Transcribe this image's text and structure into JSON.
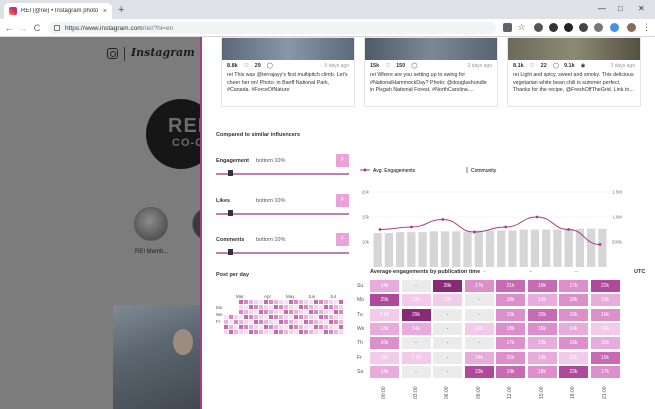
{
  "browser": {
    "tab_title": "REI (@rei) • Instagram photo",
    "tab_close": "×",
    "new_tab": "+",
    "url_host": "https://www.instagram.com",
    "url_path": "/rei/?hl=en",
    "window_controls": [
      "—",
      "□",
      "✕"
    ],
    "back": "←",
    "forward": "→",
    "reload": "C"
  },
  "instagram": {
    "wordmark": "Instagram",
    "logo_line1": "REI",
    "logo_line2": "CO-OP",
    "highlight_label": "REI Memb..."
  },
  "posts": [
    {
      "likes": "8.8k",
      "comments": "29",
      "date": "5 days ago",
      "caption": "rei This was @terrajayy's first multipitch climb. Let's cheer her on! Photo: in Banff National Park, #Canada. #ForceOfNature"
    },
    {
      "likes": "15k",
      "comments": "150",
      "date": "3 days ago",
      "caption": "rei Where are you setting up to swing for #NationalHammockDay? Photo: @douglashundle in Pisgah National Forest, #NorthCarolina...."
    },
    {
      "likes": "8.1k",
      "comments": "22",
      "views": "9.1k",
      "date": "3 days ago",
      "caption": "rei Light and spicy, sweet and smoky. This delicious vegetarian white bean chili is summer perfect. Thanks for the recipe, @FreshOffTheGrid. Link to..."
    }
  ],
  "comparison": {
    "title": "Compared to similar influencers",
    "metrics": [
      {
        "label": "Engagement",
        "value": "bottom 10%",
        "chip": "F"
      },
      {
        "label": "Likes",
        "value": "bottom 10%",
        "chip": "F"
      },
      {
        "label": "Comments",
        "value": "bottom 10%",
        "chip": "F"
      }
    ]
  },
  "posts_per_day": {
    "title": "Post per day",
    "months": [
      "Mar",
      "Apr",
      "May",
      "Jun",
      "Jul"
    ],
    "days": [
      "Mo",
      "We",
      "Fr"
    ]
  },
  "chart_data": [
    {
      "type": "line",
      "legend": [
        "Avg. Engagements",
        "Community"
      ],
      "y_left_ticks": [
        "20k",
        "15k",
        "10k"
      ],
      "y_right_ticks": [
        "1.5M",
        "1.0M",
        "500k"
      ],
      "x_ticks": [
        "Mar",
        "Apr",
        "May",
        "Jun",
        "Jul"
      ],
      "series": [
        {
          "name": "Avg. Engagements",
          "values": [
            12500,
            13000,
            14500,
            12000,
            13000,
            15000,
            12500,
            9500
          ]
        },
        {
          "name": "Community",
          "values": [
            1000000,
            1000000,
            1010000,
            1010000,
            1010000,
            1020000,
            1020000,
            1020000,
            1020000,
            1030000,
            1030000,
            1030000,
            1030000,
            1040000,
            1040000,
            1040000,
            1040000,
            1050000,
            1050000,
            1050000,
            1050000
          ]
        }
      ]
    },
    {
      "type": "heatmap",
      "title": "Average engagements by publication time",
      "timezone": "UTC",
      "rows": [
        "Su",
        "Mo",
        "Tu",
        "We",
        "Th",
        "Fr",
        "Sa"
      ],
      "cols": [
        "00:00",
        "03:00",
        "06:00",
        "09:00",
        "12:00",
        "15:00",
        "18:00",
        "21:00"
      ],
      "values": [
        [
          "14k",
          "-",
          "28k",
          "17k",
          "21k",
          "19k",
          "17k",
          "22k"
        ],
        [
          "25k",
          "12k",
          "12k",
          "-",
          "18k",
          "14k",
          "18k",
          "15k"
        ],
        [
          "7.0k",
          "29k",
          "-",
          "-",
          "16k",
          "20k",
          "16k",
          "16k"
        ],
        [
          "13k",
          "14k",
          "-",
          "12k",
          "18k",
          "16k",
          "14k",
          "12k"
        ],
        [
          "16k",
          "-",
          "-",
          "-",
          "17k",
          "13k",
          "16k",
          "15k"
        ],
        [
          "11k",
          "7.7k",
          "-",
          "14k",
          "16k",
          "14k",
          "12k",
          "19k"
        ],
        [
          "14k",
          "-",
          "-",
          "23k",
          "19k",
          "18k",
          "22k",
          "17k"
        ]
      ]
    }
  ]
}
